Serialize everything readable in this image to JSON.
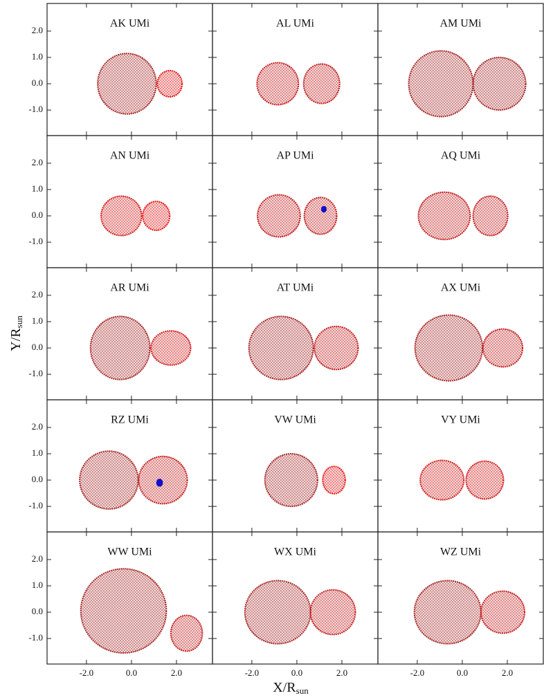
{
  "chart_data": {
    "type": "binary-grid",
    "xlabel": {
      "main": "X/R",
      "sub": "sun"
    },
    "ylabel": {
      "main": "Y/R",
      "sub": "sun"
    },
    "xlim": [
      -3.75,
      3.6
    ],
    "ylim": [
      -1.97,
      3.05
    ],
    "xticks": [
      {
        "value": -2,
        "label": "-2.0"
      },
      {
        "value": 0,
        "label": "0.0"
      },
      {
        "value": 2,
        "label": "2.0"
      }
    ],
    "yticks": [
      {
        "value": 2,
        "label": "2.0"
      },
      {
        "value": 1,
        "label": "1.0"
      },
      {
        "value": 0,
        "label": "0.0"
      },
      {
        "value": -1,
        "label": "-1.0"
      }
    ],
    "panels": [
      {
        "title": "AK UMi",
        "stars": [
          {
            "x": -0.2,
            "y": 0,
            "rx": 1.3,
            "ry": 1.15,
            "color": "#a82a2a"
          },
          {
            "x": 1.7,
            "y": 0,
            "rx": 0.55,
            "ry": 0.5,
            "color": "#e31a1a"
          }
        ]
      },
      {
        "title": "AL UMi",
        "stars": [
          {
            "x": -0.85,
            "y": 0,
            "rx": 0.92,
            "ry": 0.8,
            "color": "#c42222"
          },
          {
            "x": 1.1,
            "y": 0,
            "rx": 0.8,
            "ry": 0.75,
            "color": "#c42222"
          }
        ]
      },
      {
        "title": "AM UMi",
        "stars": [
          {
            "x": -0.95,
            "y": 0,
            "rx": 1.43,
            "ry": 1.25,
            "color": "#a82a2a"
          },
          {
            "x": 1.65,
            "y": 0,
            "rx": 1.17,
            "ry": 1.0,
            "color": "#a82a2a"
          }
        ]
      },
      {
        "title": "AN UMi",
        "stars": [
          {
            "x": -0.45,
            "y": 0,
            "rx": 0.9,
            "ry": 0.75,
            "color": "#d41e1e"
          },
          {
            "x": 1.1,
            "y": 0,
            "rx": 0.6,
            "ry": 0.55,
            "color": "#e31a1a"
          }
        ]
      },
      {
        "title": "AP UMi",
        "stars": [
          {
            "x": -0.8,
            "y": 0,
            "rx": 0.95,
            "ry": 0.8,
            "color": "#c42222"
          },
          {
            "x": 1.05,
            "y": 0,
            "rx": 0.72,
            "ry": 0.7,
            "color": "#c42222"
          }
        ],
        "spot": {
          "x": 1.2,
          "y": 0.25,
          "size": 0.25,
          "color": "#1010cc"
        }
      },
      {
        "title": "AQ UMi",
        "stars": [
          {
            "x": -0.8,
            "y": 0,
            "rx": 1.15,
            "ry": 0.9,
            "color": "#c42222"
          },
          {
            "x": 1.25,
            "y": 0,
            "rx": 0.77,
            "ry": 0.75,
            "color": "#c42222"
          }
        ]
      },
      {
        "title": "AR UMi",
        "stars": [
          {
            "x": -0.5,
            "y": 0,
            "rx": 1.32,
            "ry": 1.2,
            "color": "#a82a2a"
          },
          {
            "x": 1.75,
            "y": 0,
            "rx": 0.88,
            "ry": 0.65,
            "color": "#d41e1e"
          }
        ]
      },
      {
        "title": "AT UMi",
        "stars": [
          {
            "x": -0.7,
            "y": 0,
            "rx": 1.43,
            "ry": 1.2,
            "color": "#a82a2a"
          },
          {
            "x": 1.75,
            "y": 0,
            "rx": 0.97,
            "ry": 0.82,
            "color": "#c42222"
          }
        ]
      },
      {
        "title": "AX UMi",
        "stars": [
          {
            "x": -0.6,
            "y": 0,
            "rx": 1.5,
            "ry": 1.25,
            "color": "#a82a2a"
          },
          {
            "x": 1.8,
            "y": 0,
            "rx": 0.88,
            "ry": 0.72,
            "color": "#c42222"
          }
        ]
      },
      {
        "title": "RZ UMi",
        "stars": [
          {
            "x": -1.0,
            "y": 0,
            "rx": 1.3,
            "ry": 1.1,
            "color": "#a82a2a"
          },
          {
            "x": 1.4,
            "y": 0,
            "rx": 1.08,
            "ry": 0.9,
            "color": "#c42222"
          }
        ],
        "spot": {
          "x": 1.25,
          "y": -0.1,
          "size": 0.3,
          "color": "#1010cc"
        }
      },
      {
        "title": "VW UMi",
        "stars": [
          {
            "x": -0.25,
            "y": 0,
            "rx": 1.17,
            "ry": 1.0,
            "color": "#a82a2a"
          },
          {
            "x": 1.65,
            "y": 0,
            "rx": 0.5,
            "ry": 0.52,
            "color": "#e31a1a"
          }
        ]
      },
      {
        "title": "VY UMi",
        "stars": [
          {
            "x": -0.9,
            "y": 0,
            "rx": 0.97,
            "ry": 0.75,
            "color": "#d41e1e"
          },
          {
            "x": 1.0,
            "y": 0,
            "rx": 0.83,
            "ry": 0.72,
            "color": "#d41e1e"
          }
        ]
      },
      {
        "title": "WW UMi",
        "stars": [
          {
            "x": -0.35,
            "y": 0.05,
            "rx": 1.9,
            "ry": 1.6,
            "color": "#a82a2a"
          },
          {
            "x": 2.45,
            "y": -0.8,
            "rx": 0.7,
            "ry": 0.68,
            "color": "#c42222"
          }
        ]
      },
      {
        "title": "WX UMi",
        "stars": [
          {
            "x": -0.85,
            "y": 0,
            "rx": 1.46,
            "ry": 1.2,
            "color": "#a82a2a"
          },
          {
            "x": 1.6,
            "y": 0,
            "rx": 1.0,
            "ry": 0.85,
            "color": "#c42222"
          }
        ]
      },
      {
        "title": "WZ UMi",
        "stars": [
          {
            "x": -0.65,
            "y": 0,
            "rx": 1.48,
            "ry": 1.2,
            "color": "#a82a2a"
          },
          {
            "x": 1.8,
            "y": 0,
            "rx": 0.97,
            "ry": 0.8,
            "color": "#c42222"
          }
        ]
      }
    ]
  }
}
